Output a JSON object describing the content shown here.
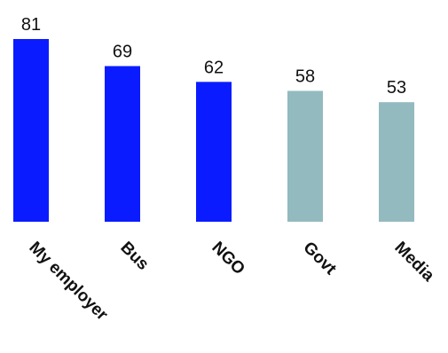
{
  "chart_data": {
    "type": "bar",
    "categories": [
      "My employer",
      "Bus",
      "NGO",
      "Govt",
      "Media"
    ],
    "values": [
      81,
      69,
      62,
      58,
      53
    ],
    "bar_colors": [
      "#0a1cff",
      "#0a1cff",
      "#0a1cff",
      "#93babf",
      "#93babf"
    ],
    "ylim": [
      0,
      81
    ],
    "grid": false,
    "legend": "none"
  }
}
